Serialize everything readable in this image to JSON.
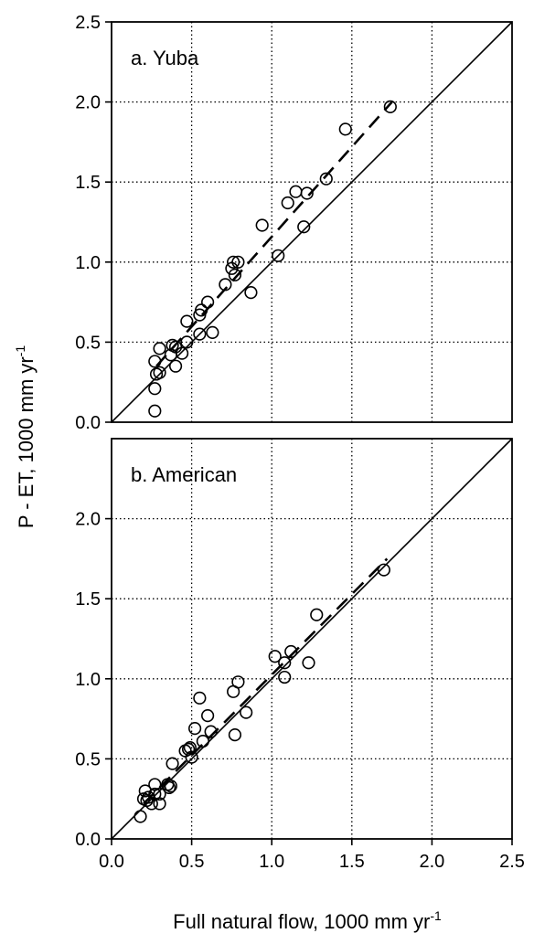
{
  "chart_data": [
    {
      "type": "scatter",
      "panel_label": "a. Yuba",
      "xlim": [
        0,
        2.5
      ],
      "ylim": [
        0,
        2.5
      ],
      "y_ticks": [
        "0.0",
        "0.5",
        "1.0",
        "1.5",
        "2.0",
        "2.5"
      ],
      "grid": "dotted",
      "lines": [
        {
          "style": "solid",
          "points": [
            [
              0,
              0
            ],
            [
              2.5,
              2.5
            ]
          ]
        },
        {
          "style": "dashed",
          "points": [
            [
              0.28,
              0.35
            ],
            [
              1.75,
              2.0
            ]
          ]
        }
      ],
      "points": [
        [
          0.27,
          0.07
        ],
        [
          0.27,
          0.21
        ],
        [
          0.28,
          0.3
        ],
        [
          0.3,
          0.31
        ],
        [
          0.27,
          0.38
        ],
        [
          0.3,
          0.46
        ],
        [
          0.38,
          0.48
        ],
        [
          0.4,
          0.47
        ],
        [
          0.37,
          0.42
        ],
        [
          0.44,
          0.43
        ],
        [
          0.4,
          0.35
        ],
        [
          0.47,
          0.5
        ],
        [
          0.47,
          0.63
        ],
        [
          0.55,
          0.55
        ],
        [
          0.55,
          0.67
        ],
        [
          0.56,
          0.7
        ],
        [
          0.63,
          0.56
        ],
        [
          0.6,
          0.75
        ],
        [
          0.71,
          0.86
        ],
        [
          0.75,
          0.96
        ],
        [
          0.76,
          1.0
        ],
        [
          0.79,
          1.0
        ],
        [
          0.77,
          0.92
        ],
        [
          0.87,
          0.81
        ],
        [
          0.94,
          1.23
        ],
        [
          1.04,
          1.04
        ],
        [
          1.1,
          1.37
        ],
        [
          1.15,
          1.44
        ],
        [
          1.2,
          1.22
        ],
        [
          1.22,
          1.43
        ],
        [
          1.34,
          1.52
        ],
        [
          1.46,
          1.83
        ],
        [
          1.74,
          1.97
        ]
      ]
    },
    {
      "type": "scatter",
      "panel_label": "b. American",
      "xlim": [
        0,
        2.5
      ],
      "ylim": [
        0,
        2.5
      ],
      "x_ticks": [
        "0.0",
        "0.5",
        "1.0",
        "1.5",
        "2.0",
        "2.5"
      ],
      "y_ticks": [
        "0.0",
        "0.5",
        "1.0",
        "1.5",
        "2.0"
      ],
      "grid": "dotted",
      "lines": [
        {
          "style": "solid",
          "points": [
            [
              0,
              0
            ],
            [
              2.5,
              2.5
            ]
          ]
        },
        {
          "style": "dashed",
          "points": [
            [
              0.2,
              0.22
            ],
            [
              1.72,
              1.75
            ]
          ]
        }
      ],
      "points": [
        [
          0.18,
          0.14
        ],
        [
          0.2,
          0.25
        ],
        [
          0.21,
          0.3
        ],
        [
          0.23,
          0.26
        ],
        [
          0.22,
          0.24
        ],
        [
          0.25,
          0.22
        ],
        [
          0.27,
          0.28
        ],
        [
          0.27,
          0.34
        ],
        [
          0.3,
          0.28
        ],
        [
          0.3,
          0.22
        ],
        [
          0.35,
          0.34
        ],
        [
          0.36,
          0.32
        ],
        [
          0.37,
          0.33
        ],
        [
          0.38,
          0.47
        ],
        [
          0.46,
          0.55
        ],
        [
          0.48,
          0.56
        ],
        [
          0.49,
          0.57
        ],
        [
          0.5,
          0.51
        ],
        [
          0.52,
          0.69
        ],
        [
          0.55,
          0.88
        ],
        [
          0.57,
          0.61
        ],
        [
          0.6,
          0.77
        ],
        [
          0.62,
          0.67
        ],
        [
          0.76,
          0.92
        ],
        [
          0.79,
          0.98
        ],
        [
          0.77,
          0.65
        ],
        [
          0.84,
          0.79
        ],
        [
          1.02,
          1.14
        ],
        [
          1.08,
          1.1
        ],
        [
          1.08,
          1.01
        ],
        [
          1.12,
          1.17
        ],
        [
          1.23,
          1.1
        ],
        [
          1.28,
          1.4
        ],
        [
          1.7,
          1.68
        ]
      ]
    }
  ],
  "ylabel": "P - ET, 1000 mm yr",
  "ylabel_sup": "-1",
  "xlabel": "Full natural flow, 1000 mm yr",
  "xlabel_sup": "-1"
}
